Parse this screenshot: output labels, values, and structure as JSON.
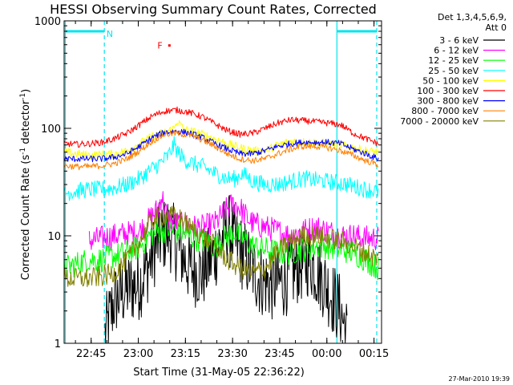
{
  "chart_data": {
    "type": "line",
    "title": "HESSI Observing Summary Count Rates, Corrected",
    "xlabel": "Start Time (31-May-05 22:36:22)",
    "ylabel_main": "Corrected Count Rate (s",
    "ylabel_sup1": "-1",
    "ylabel_mid": " detector",
    "ylabel_sup2": "-1",
    "ylabel_end": ")",
    "x_unit": "minutes after 22:36:22",
    "x_range": [
      0,
      101
    ],
    "y_scale": "log",
    "ylim": [
      1,
      1000
    ],
    "x_ticks": [
      {
        "label": "22:45",
        "value": 8.6
      },
      {
        "label": "23:00",
        "value": 23.6
      },
      {
        "label": "23:15",
        "value": 38.6
      },
      {
        "label": "23:30",
        "value": 53.6
      },
      {
        "label": "23:45",
        "value": 68.6
      },
      {
        "label": "00:00",
        "value": 83.6
      },
      {
        "label": "00:15",
        "value": 98.6
      }
    ],
    "y_ticks": [
      {
        "label": "1",
        "value": 1
      },
      {
        "label": "10",
        "value": 10
      },
      {
        "label": "100",
        "value": 100
      },
      {
        "label": "1000",
        "value": 1000
      }
    ],
    "legend_header": [
      "Det 1,3,4,5,6,9,",
      "Att 0"
    ],
    "legend_position": "right",
    "footer_date": "27-Mar-2010 19:39",
    "night_intervals": [
      [
        0,
        12.8
      ],
      [
        86.8,
        101
      ]
    ],
    "annotations": [
      {
        "text": "N",
        "x": 14.5,
        "y": 760,
        "color": "#00e5ee"
      },
      {
        "text": "F",
        "x": 30.5,
        "y": 590,
        "color": "#ff0000"
      }
    ],
    "flag_markers": [
      {
        "x": 33.5,
        "y": 590,
        "color": "#ff0000"
      }
    ],
    "series": [
      {
        "name": "3 - 6 keV",
        "color": "#000000",
        "x": [
          13,
          16,
          20,
          24,
          27,
          30,
          33,
          36,
          40,
          44,
          48,
          52,
          55,
          58,
          62,
          66,
          70,
          74,
          78,
          82,
          86,
          88,
          90
        ],
        "values": [
          1.2,
          2.5,
          3.2,
          3.6,
          5.5,
          9,
          11,
          8,
          5,
          4.5,
          7,
          12,
          8,
          6,
          4,
          3.5,
          3.8,
          5,
          6,
          4,
          2.5,
          2,
          1.2
        ]
      },
      {
        "name": "6 - 12 keV",
        "color": "#ff00ff",
        "x": [
          8,
          12,
          16,
          20,
          24,
          27,
          30,
          31,
          33,
          36,
          40,
          44,
          48,
          52,
          54,
          56,
          58,
          60,
          64,
          68,
          72,
          76,
          80,
          84,
          88,
          92,
          96,
          100
        ],
        "values": [
          9,
          9.5,
          10,
          10.5,
          11,
          14,
          18,
          24,
          14,
          13,
          12,
          12,
          13,
          18,
          20,
          18,
          15,
          13,
          12,
          11,
          10,
          11,
          12,
          11,
          10,
          10,
          9.5,
          9.5
        ]
      },
      {
        "name": "12 - 25 keV",
        "color": "#00ff00",
        "x": [
          0,
          4,
          8,
          12,
          16,
          20,
          24,
          27,
          30,
          33,
          36,
          40,
          44,
          48,
          52,
          54,
          56,
          58,
          60,
          64,
          68,
          72,
          76,
          80,
          84,
          88,
          92,
          96,
          100
        ],
        "values": [
          5,
          5.5,
          6,
          6,
          6.5,
          7,
          8,
          10,
          11,
          11.5,
          11,
          10,
          9,
          8,
          10,
          11,
          10,
          9,
          8,
          7.5,
          7,
          7,
          7.5,
          8,
          8,
          7.5,
          7,
          6,
          5
        ]
      },
      {
        "name": "25 - 50 keV",
        "color": "#00ffff",
        "x": [
          0,
          4,
          8,
          12,
          16,
          20,
          24,
          27,
          30,
          33,
          35,
          36,
          38,
          40,
          44,
          48,
          52,
          55,
          56,
          58,
          60,
          64,
          68,
          72,
          76,
          80,
          84,
          88,
          92,
          96,
          100
        ],
        "values": [
          25,
          26,
          27,
          27,
          28,
          30,
          34,
          40,
          46,
          55,
          70,
          62,
          52,
          48,
          44,
          38,
          34,
          34,
          38,
          36,
          32,
          30,
          30,
          32,
          34,
          33,
          32,
          31,
          29,
          27,
          26
        ]
      },
      {
        "name": "50 - 100 keV",
        "color": "#ffff00",
        "x": [
          0,
          4,
          8,
          12,
          16,
          20,
          24,
          28,
          32,
          35,
          36,
          38,
          40,
          44,
          48,
          52,
          56,
          60,
          64,
          68,
          72,
          76,
          80,
          84,
          88,
          92,
          96,
          100
        ],
        "values": [
          60,
          58,
          56,
          57,
          58,
          62,
          72,
          84,
          92,
          100,
          118,
          98,
          95,
          88,
          80,
          72,
          66,
          62,
          62,
          70,
          76,
          75,
          74,
          72,
          70,
          66,
          62,
          60
        ]
      },
      {
        "name": "100 - 300 keV",
        "color": "#ff0000",
        "x": [
          0,
          4,
          8,
          12,
          16,
          20,
          24,
          28,
          32,
          36,
          40,
          44,
          48,
          52,
          56,
          60,
          64,
          68,
          72,
          76,
          80,
          84,
          88,
          92,
          96,
          100
        ],
        "values": [
          72,
          71,
          72,
          74,
          80,
          90,
          108,
          130,
          145,
          148,
          140,
          128,
          110,
          95,
          88,
          90,
          100,
          112,
          120,
          118,
          115,
          112,
          108,
          90,
          80,
          72
        ]
      },
      {
        "name": "300 - 800 keV",
        "color": "#0000ff",
        "x": [
          0,
          4,
          8,
          12,
          16,
          20,
          24,
          28,
          32,
          36,
          40,
          44,
          48,
          52,
          56,
          60,
          64,
          68,
          72,
          76,
          80,
          84,
          88,
          92,
          96,
          100
        ],
        "values": [
          52,
          52,
          52,
          52,
          54,
          58,
          68,
          82,
          92,
          94,
          90,
          82,
          72,
          64,
          58,
          58,
          62,
          68,
          72,
          74,
          74,
          74,
          72,
          64,
          58,
          52
        ]
      },
      {
        "name": "800 - 7000 keV",
        "color": "#ff8000",
        "x": [
          0,
          4,
          8,
          12,
          16,
          20,
          24,
          28,
          32,
          36,
          40,
          44,
          48,
          52,
          56,
          60,
          64,
          68,
          72,
          76,
          80,
          84,
          88,
          92,
          96,
          100
        ],
        "values": [
          45,
          44,
          44,
          45,
          47,
          52,
          62,
          76,
          88,
          90,
          86,
          78,
          68,
          58,
          52,
          50,
          52,
          58,
          64,
          68,
          68,
          66,
          62,
          56,
          50,
          46
        ]
      },
      {
        "name": "7000 - 20000 keV",
        "color": "#808000",
        "x": [
          0,
          4,
          8,
          12,
          16,
          20,
          24,
          28,
          30,
          32,
          35,
          38,
          40,
          44,
          48,
          52,
          56,
          60,
          64,
          68,
          72,
          76,
          80,
          84,
          88,
          92,
          96,
          100
        ],
        "values": [
          4,
          4,
          4,
          4.2,
          4.5,
          6,
          9,
          14,
          15,
          15.5,
          15,
          14,
          12,
          10,
          8,
          6,
          5,
          4.5,
          5,
          7,
          9,
          10,
          10,
          9.5,
          9,
          8,
          7,
          6
        ]
      }
    ]
  }
}
